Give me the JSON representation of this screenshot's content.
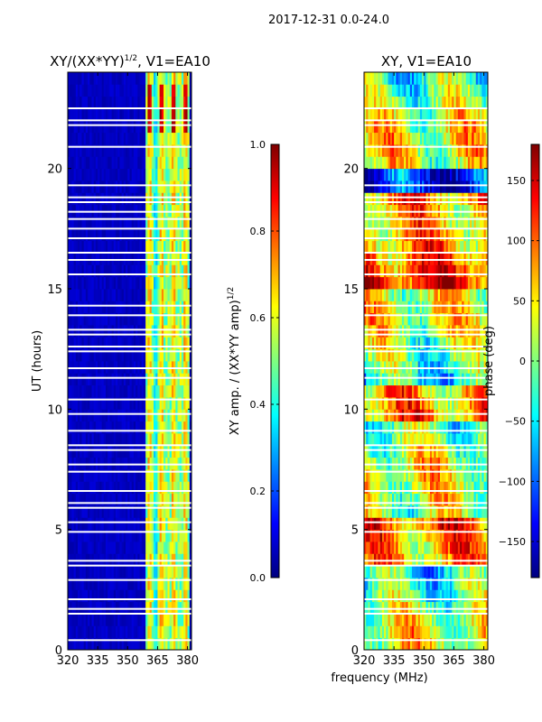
{
  "suptitle": "2017-12-31 0.0-24.0",
  "shared_xlabel": "frequency (MHz)",
  "colors": {
    "jet": [
      "#00007f",
      "#0000ff",
      "#007fff",
      "#00ffff",
      "#7fff7f",
      "#ffff00",
      "#ff7f00",
      "#ff0000",
      "#7f0000"
    ]
  },
  "chart_data": [
    {
      "type": "heatmap",
      "title": "XY/(XX*YY)^1/2, V1=EA10",
      "title_base": "XY/(XX*YY)",
      "title_sup": "1/2",
      "title_rest": ", V1=EA10",
      "xlabel": "",
      "ylabel": "UT (hours)",
      "xlim": [
        320,
        382
      ],
      "ylim": [
        0,
        24
      ],
      "xticks": [
        320,
        335,
        350,
        365,
        380
      ],
      "yticks": [
        0,
        5,
        10,
        15,
        20
      ],
      "colorbar": {
        "label": "XY amp. / (XX*YY amp)^1/2",
        "label_base": "XY amp. / (XX*YY amp)",
        "label_sup": "1/2",
        "range": [
          0.0,
          1.0
        ],
        "ticks": [
          "0.0",
          "0.2",
          "0.4",
          "0.6",
          "0.8",
          "1.0"
        ]
      },
      "description": "Mostly low amplitude (~0.05) across band; elevated amplitude (~0.4-0.7) between ~359-381 MHz with bright stripes near 362, 368, 374, 379 MHz; peak near 1.0 around 22-23 UT"
    },
    {
      "type": "heatmap",
      "title": "XY, V1=EA10",
      "xlabel": "",
      "ylabel": "",
      "xlim": [
        320,
        382
      ],
      "ylim": [
        0,
        24
      ],
      "xticks": [
        320,
        335,
        350,
        365,
        380
      ],
      "yticks": [
        0,
        5,
        10,
        15,
        20
      ],
      "colorbar": {
        "label": "phase (deg)",
        "range": [
          -180,
          180
        ],
        "ticks": [
          "−150",
          "−100",
          "−50",
          "0",
          "50",
          "100",
          "150"
        ]
      },
      "description": "Phase pattern with wide variation; strong positive phase (~150 deg) near 4-5 UT, 10-11 UT, 15-19 UT; negative phase near 19-20 UT"
    }
  ]
}
